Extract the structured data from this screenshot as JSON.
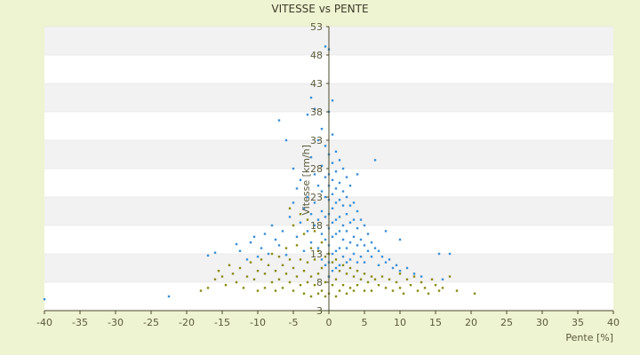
{
  "chart_data": {
    "type": "scatter",
    "title": "VITESSE vs PENTE",
    "xlabel": "Pente [%]",
    "ylabel": "Vitesse [km/h]",
    "xlim": [
      -40,
      40
    ],
    "ylim": [
      3,
      53
    ],
    "xticks": [
      -40,
      -35,
      -30,
      -25,
      -20,
      -15,
      -10,
      -5,
      0,
      5,
      10,
      15,
      20,
      25,
      30,
      35,
      40
    ],
    "yticks": [
      3,
      8,
      13,
      18,
      23,
      28,
      33,
      38,
      43,
      48,
      53
    ],
    "grid": "horizontal bands",
    "legend": "none",
    "colors": {
      "blue": "#3a8fd6",
      "olive": "#8a8a10",
      "band": "#f2f2f2",
      "plot_bg": "#ffffff",
      "axis": "#4a4a2a"
    },
    "series": [
      {
        "color": "blue",
        "points": [
          [
            -40,
            5.0
          ],
          [
            -22.5,
            5.5
          ],
          [
            -17,
            12.7
          ],
          [
            -16,
            13.2
          ],
          [
            -13,
            14.7
          ],
          [
            -12.5,
            13.5
          ],
          [
            -11.5,
            12.0
          ],
          [
            -11,
            15.0
          ],
          [
            -10.5,
            16.0
          ],
          [
            -10,
            12.5
          ],
          [
            -9.5,
            14.0
          ],
          [
            -9,
            16.5
          ],
          [
            -8.5,
            13.0
          ],
          [
            -8,
            18.0
          ],
          [
            -7.5,
            15.5
          ],
          [
            -7,
            36.5
          ],
          [
            -7,
            14.5
          ],
          [
            -6.5,
            17.0
          ],
          [
            -6,
            33.0
          ],
          [
            -6,
            12.8
          ],
          [
            -5.5,
            19.5
          ],
          [
            -5,
            22.0
          ],
          [
            -5,
            28.0
          ],
          [
            -4.5,
            16.0
          ],
          [
            -4.5,
            24.5
          ],
          [
            -4,
            18.5
          ],
          [
            -4,
            26.0
          ],
          [
            -3.5,
            21.0
          ],
          [
            -3.5,
            13.5
          ],
          [
            -3,
            37.5
          ],
          [
            -3,
            23.0
          ],
          [
            -3,
            17.0
          ],
          [
            -2.5,
            40.5
          ],
          [
            -2.5,
            30.0
          ],
          [
            -2.5,
            20.0
          ],
          [
            -2.5,
            15.0
          ],
          [
            -2,
            38.5
          ],
          [
            -2,
            27.0
          ],
          [
            -2,
            22.0
          ],
          [
            -2,
            18.0
          ],
          [
            -1.5,
            33.0
          ],
          [
            -1.5,
            25.0
          ],
          [
            -1.5,
            19.0
          ],
          [
            -1.5,
            14.0
          ],
          [
            -1,
            35.0
          ],
          [
            -1,
            28.5
          ],
          [
            -1,
            24.0
          ],
          [
            -1,
            20.5
          ],
          [
            -1,
            16.5
          ],
          [
            -1,
            12.0
          ],
          [
            -0.5,
            49.5
          ],
          [
            -0.5,
            32.0
          ],
          [
            -0.5,
            26.5
          ],
          [
            -0.5,
            23.0
          ],
          [
            -0.5,
            19.5
          ],
          [
            -0.5,
            15.5
          ],
          [
            -0.5,
            11.0
          ],
          [
            0,
            49.0
          ],
          [
            0,
            38.0
          ],
          [
            0,
            30.5
          ],
          [
            0,
            27.0
          ],
          [
            0,
            25.0
          ],
          [
            0,
            22.5
          ],
          [
            0,
            20.0
          ],
          [
            0,
            17.5
          ],
          [
            0,
            14.5
          ],
          [
            0,
            11.5
          ],
          [
            0,
            9.0
          ],
          [
            0.5,
            40.0
          ],
          [
            0.5,
            34.0
          ],
          [
            0.5,
            29.0
          ],
          [
            0.5,
            26.0
          ],
          [
            0.5,
            23.5
          ],
          [
            0.5,
            21.0
          ],
          [
            0.5,
            18.5
          ],
          [
            0.5,
            16.0
          ],
          [
            0.5,
            13.0
          ],
          [
            0.5,
            10.0
          ],
          [
            1,
            31.0
          ],
          [
            1,
            27.5
          ],
          [
            1,
            24.5
          ],
          [
            1,
            22.0
          ],
          [
            1,
            19.0
          ],
          [
            1,
            16.5
          ],
          [
            1,
            13.5
          ],
          [
            1,
            10.5
          ],
          [
            1.5,
            29.5
          ],
          [
            1.5,
            25.5
          ],
          [
            1.5,
            22.5
          ],
          [
            1.5,
            19.5
          ],
          [
            1.5,
            17.0
          ],
          [
            1.5,
            14.0
          ],
          [
            1.5,
            11.0
          ],
          [
            2,
            28.0
          ],
          [
            2,
            24.0
          ],
          [
            2,
            21.5
          ],
          [
            2,
            18.0
          ],
          [
            2,
            15.5
          ],
          [
            2,
            12.5
          ],
          [
            2.5,
            26.5
          ],
          [
            2.5,
            23.0
          ],
          [
            2.5,
            20.0
          ],
          [
            2.5,
            17.0
          ],
          [
            2.5,
            14.0
          ],
          [
            2.5,
            11.5
          ],
          [
            3,
            25.0
          ],
          [
            3,
            21.5
          ],
          [
            3,
            18.5
          ],
          [
            3,
            15.0
          ],
          [
            3,
            12.0
          ],
          [
            3.5,
            22.0
          ],
          [
            3.5,
            19.0
          ],
          [
            3.5,
            16.0
          ],
          [
            3.5,
            13.0
          ],
          [
            4,
            27.0
          ],
          [
            4,
            20.5
          ],
          [
            4,
            17.5
          ],
          [
            4,
            14.5
          ],
          [
            4,
            11.5
          ],
          [
            4.5,
            19.0
          ],
          [
            4.5,
            15.5
          ],
          [
            4.5,
            12.5
          ],
          [
            5,
            18.0
          ],
          [
            5,
            14.5
          ],
          [
            5,
            11.5
          ],
          [
            5.5,
            16.5
          ],
          [
            5.5,
            13.5
          ],
          [
            6,
            15.0
          ],
          [
            6,
            12.5
          ],
          [
            6.5,
            29.5
          ],
          [
            6.5,
            14.0
          ],
          [
            7,
            13.5
          ],
          [
            7,
            11.0
          ],
          [
            7.5,
            12.5
          ],
          [
            8,
            17.0
          ],
          [
            8,
            11.5
          ],
          [
            8.5,
            12.0
          ],
          [
            9,
            10.5
          ],
          [
            9.5,
            11.0
          ],
          [
            10,
            15.5
          ],
          [
            10,
            10.0
          ],
          [
            11,
            10.5
          ],
          [
            12,
            9.5
          ],
          [
            13,
            9.0
          ],
          [
            15.5,
            13.0
          ],
          [
            16,
            8.5
          ],
          [
            17,
            13.0
          ]
        ]
      },
      {
        "color": "olive",
        "points": [
          [
            -18,
            6.5
          ],
          [
            -17,
            7.0
          ],
          [
            -16,
            8.5
          ],
          [
            -15.5,
            10.0
          ],
          [
            -15,
            9.0
          ],
          [
            -14.5,
            7.5
          ],
          [
            -14,
            11.0
          ],
          [
            -13.5,
            9.5
          ],
          [
            -13,
            8.0
          ],
          [
            -12.5,
            10.5
          ],
          [
            -12,
            7.0
          ],
          [
            -11.5,
            9.0
          ],
          [
            -11,
            11.5
          ],
          [
            -10.5,
            8.5
          ],
          [
            -10,
            10.0
          ],
          [
            -10,
            6.5
          ],
          [
            -9.5,
            12.0
          ],
          [
            -9,
            9.5
          ],
          [
            -9,
            7.0
          ],
          [
            -8.5,
            11.0
          ],
          [
            -8,
            8.0
          ],
          [
            -8,
            13.0
          ],
          [
            -7.5,
            10.0
          ],
          [
            -7.5,
            6.5
          ],
          [
            -7,
            12.5
          ],
          [
            -7,
            8.5
          ],
          [
            -6.5,
            11.0
          ],
          [
            -6.5,
            7.0
          ],
          [
            -6,
            14.0
          ],
          [
            -6,
            9.5
          ],
          [
            -5.5,
            21.0
          ],
          [
            -5.5,
            12.0
          ],
          [
            -5.5,
            8.0
          ],
          [
            -5,
            18.0
          ],
          [
            -5,
            10.5
          ],
          [
            -5,
            6.5
          ],
          [
            -4.5,
            14.5
          ],
          [
            -4.5,
            9.0
          ],
          [
            -4,
            20.0
          ],
          [
            -4,
            12.0
          ],
          [
            -4,
            7.5
          ],
          [
            -3.5,
            16.5
          ],
          [
            -3.5,
            10.0
          ],
          [
            -3.5,
            6.0
          ],
          [
            -3,
            19.0
          ],
          [
            -3,
            11.5
          ],
          [
            -3,
            8.0
          ],
          [
            -2.5,
            14.0
          ],
          [
            -2.5,
            9.0
          ],
          [
            -2.5,
            5.5
          ],
          [
            -2,
            17.0
          ],
          [
            -2,
            12.0
          ],
          [
            -2,
            7.5
          ],
          [
            -1.5,
            13.5
          ],
          [
            -1.5,
            9.5
          ],
          [
            -1.5,
            6.0
          ],
          [
            -1,
            15.0
          ],
          [
            -1,
            10.5
          ],
          [
            -1,
            6.5
          ],
          [
            -0.5,
            12.5
          ],
          [
            -0.5,
            8.0
          ],
          [
            -0.5,
            5.5
          ],
          [
            0,
            13.0
          ],
          [
            0,
            9.0
          ],
          [
            0,
            6.0
          ],
          [
            0.5,
            11.5
          ],
          [
            0.5,
            7.5
          ],
          [
            1,
            12.0
          ],
          [
            1,
            8.5
          ],
          [
            1,
            5.5
          ],
          [
            1.5,
            10.0
          ],
          [
            1.5,
            6.5
          ],
          [
            2,
            11.0
          ],
          [
            2,
            7.5
          ],
          [
            2.5,
            9.5
          ],
          [
            2.5,
            6.0
          ],
          [
            3,
            10.5
          ],
          [
            3,
            7.0
          ],
          [
            3.5,
            9.0
          ],
          [
            3.5,
            6.5
          ],
          [
            4,
            10.0
          ],
          [
            4,
            7.5
          ],
          [
            4.5,
            8.5
          ],
          [
            5,
            9.5
          ],
          [
            5,
            6.5
          ],
          [
            5.5,
            8.0
          ],
          [
            6,
            9.0
          ],
          [
            6,
            6.5
          ],
          [
            6.5,
            8.5
          ],
          [
            7,
            7.5
          ],
          [
            7.5,
            9.0
          ],
          [
            8,
            7.0
          ],
          [
            8.5,
            8.5
          ],
          [
            9,
            6.5
          ],
          [
            9.5,
            8.0
          ],
          [
            10,
            9.5
          ],
          [
            10,
            7.0
          ],
          [
            10.5,
            6.0
          ],
          [
            11,
            8.5
          ],
          [
            11.5,
            7.5
          ],
          [
            12,
            9.0
          ],
          [
            12.5,
            6.5
          ],
          [
            13,
            8.0
          ],
          [
            13.5,
            7.0
          ],
          [
            14,
            6.0
          ],
          [
            14.5,
            8.5
          ],
          [
            15,
            7.5
          ],
          [
            15.5,
            6.5
          ],
          [
            16,
            7.0
          ],
          [
            17,
            9.0
          ],
          [
            18,
            6.5
          ],
          [
            20.5,
            6.0
          ]
        ]
      }
    ]
  }
}
